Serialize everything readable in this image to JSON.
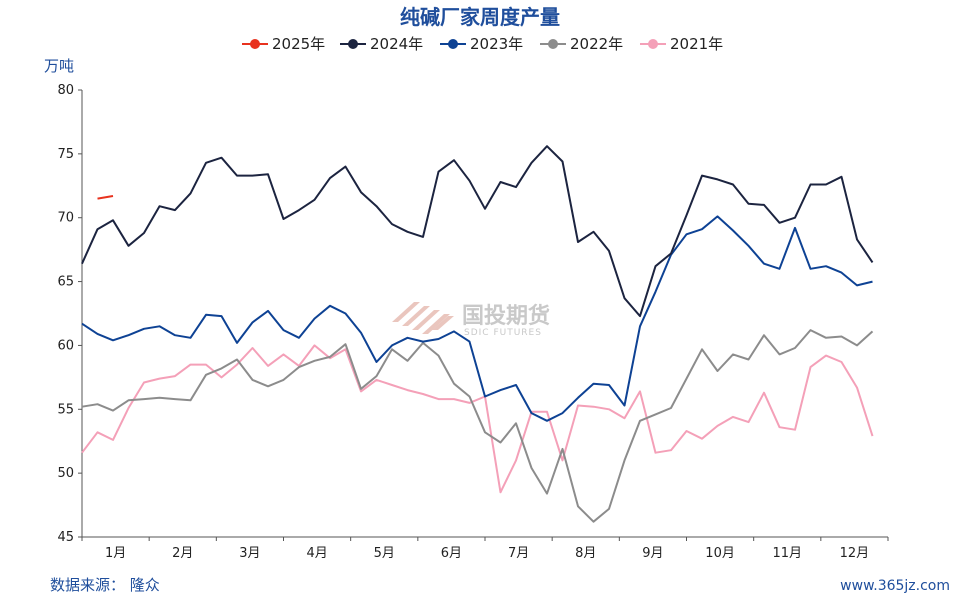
{
  "chart_data": {
    "type": "line",
    "title": "纯碱厂家周度产量",
    "ylabel": "万吨",
    "ylim": [
      45,
      80
    ],
    "yticks": [
      "45",
      "50",
      "55",
      "60",
      "65",
      "70",
      "75",
      "80"
    ],
    "xlim": [
      0,
      52
    ],
    "month_ticks": [
      1,
      2,
      3,
      4,
      5,
      6,
      7,
      8,
      9,
      10,
      11,
      12
    ],
    "month_labels": [
      "1月",
      "2月",
      "3月",
      "4月",
      "5月",
      "6月",
      "7月",
      "8月",
      "9月",
      "10月",
      "11月",
      "12月"
    ],
    "grid": false,
    "legend_position": "top",
    "series": [
      {
        "name": "2025年",
        "color": "#e8321e",
        "x": [
          1,
          2
        ],
        "y": [
          71.5,
          71.7
        ]
      },
      {
        "name": "2024年",
        "color": "#1c2440",
        "x": [
          0,
          1,
          2,
          3,
          4,
          5,
          6,
          7,
          8,
          9,
          10,
          11,
          12,
          13,
          14,
          15,
          16,
          17,
          18,
          19,
          20,
          21,
          22,
          23,
          24,
          25,
          26,
          27,
          28,
          29,
          30,
          31,
          32,
          33,
          34,
          35,
          36,
          37,
          38,
          39,
          40,
          41,
          42,
          43,
          44,
          45,
          46,
          47,
          48,
          49,
          50,
          51,
          52
        ],
        "y": [
          66.4,
          69.1,
          69.8,
          67.8,
          68.8,
          70.9,
          70.6,
          71.9,
          74.3,
          74.7,
          73.3,
          73.3,
          73.4,
          69.9,
          70.6,
          71.4,
          73.1,
          74.0,
          72.0,
          70.9,
          69.5,
          68.9,
          68.5,
          73.6,
          74.5,
          72.9,
          70.7,
          72.8,
          72.4,
          74.3,
          75.6,
          74.4,
          68.1,
          68.9,
          67.4,
          63.7,
          62.3,
          66.2,
          67.2,
          70.2,
          73.3,
          73.0,
          72.6,
          71.1,
          71.0,
          69.6,
          70.0,
          72.6,
          72.6,
          73.2,
          68.3,
          66.5,
          null
        ]
      },
      {
        "name": "2023年",
        "color": "#0e4294",
        "x": [
          0,
          1,
          2,
          3,
          4,
          5,
          6,
          7,
          8,
          9,
          10,
          11,
          12,
          13,
          14,
          15,
          16,
          17,
          18,
          19,
          20,
          21,
          22,
          23,
          24,
          25,
          26,
          27,
          28,
          29,
          30,
          31,
          32,
          33,
          34,
          35,
          36,
          37,
          38,
          39,
          40,
          41,
          42,
          43,
          44,
          45,
          46,
          47,
          48,
          49,
          50,
          51,
          52
        ],
        "y": [
          61.7,
          60.9,
          60.4,
          60.8,
          61.3,
          61.5,
          60.8,
          60.6,
          62.4,
          62.3,
          60.2,
          61.8,
          62.7,
          61.2,
          60.6,
          62.1,
          63.1,
          62.5,
          61.0,
          58.7,
          60.0,
          60.6,
          60.3,
          60.5,
          61.1,
          60.3,
          56.0,
          56.5,
          56.9,
          54.7,
          54.1,
          54.7,
          55.9,
          57.0,
          56.9,
          55.3,
          61.5,
          64.2,
          67.1,
          68.7,
          69.1,
          70.1,
          69.0,
          67.8,
          66.4,
          66.0,
          69.2,
          66.0,
          66.2,
          65.7,
          64.7,
          65.0,
          null
        ]
      },
      {
        "name": "2022年",
        "color": "#8c8c8c",
        "x": [
          0,
          1,
          2,
          3,
          4,
          5,
          6,
          7,
          8,
          9,
          10,
          11,
          12,
          13,
          14,
          15,
          16,
          17,
          18,
          19,
          20,
          21,
          22,
          23,
          24,
          25,
          26,
          27,
          28,
          29,
          30,
          31,
          32,
          33,
          34,
          35,
          36,
          37,
          38,
          39,
          40,
          41,
          42,
          43,
          44,
          45,
          46,
          47,
          48,
          49,
          50,
          51,
          52
        ],
        "y": [
          55.2,
          55.4,
          54.9,
          55.7,
          55.8,
          55.9,
          55.8,
          55.7,
          57.7,
          58.2,
          58.9,
          57.3,
          56.8,
          57.3,
          58.3,
          58.8,
          59.1,
          60.1,
          56.6,
          57.6,
          59.7,
          58.8,
          60.2,
          59.2,
          57.0,
          56.0,
          53.2,
          52.4,
          53.9,
          50.4,
          48.4,
          51.9,
          47.4,
          46.2,
          47.2,
          51.0,
          54.1,
          54.6,
          55.1,
          57.4,
          59.7,
          58.0,
          59.3,
          58.9,
          60.8,
          59.3,
          59.8,
          61.2,
          60.6,
          60.7,
          60.0,
          61.1,
          null
        ]
      },
      {
        "name": "2021年",
        "color": "#f4a0b8",
        "x": [
          0,
          1,
          2,
          3,
          4,
          5,
          6,
          7,
          8,
          9,
          10,
          11,
          12,
          13,
          14,
          15,
          16,
          17,
          18,
          19,
          20,
          21,
          22,
          23,
          24,
          25,
          26,
          27,
          28,
          29,
          30,
          31,
          32,
          33,
          34,
          35,
          36,
          37,
          38,
          39,
          40,
          41,
          42,
          43,
          44,
          45,
          46,
          47,
          48,
          49,
          50,
          51,
          52
        ],
        "y": [
          51.6,
          53.2,
          52.6,
          55.1,
          57.1,
          57.4,
          57.6,
          58.5,
          58.5,
          57.5,
          58.5,
          59.8,
          58.4,
          59.3,
          58.4,
          60.0,
          59.0,
          59.7,
          56.4,
          57.3,
          56.9,
          56.5,
          56.2,
          55.8,
          55.8,
          55.5,
          56.0,
          48.5,
          51.0,
          54.8,
          54.8,
          51.0,
          55.3,
          55.2,
          55.0,
          54.3,
          56.4,
          51.6,
          51.8,
          53.3,
          52.7,
          53.7,
          54.4,
          54.0,
          56.3,
          53.6,
          53.4,
          58.3,
          59.2,
          58.7,
          56.7,
          52.9,
          null
        ]
      }
    ]
  },
  "watermark": {
    "name_cn": "国投期货",
    "name_en": "SDIC FUTURES"
  },
  "footer": {
    "source": "数据来源： 隆众",
    "site": "www.365jz.com"
  }
}
